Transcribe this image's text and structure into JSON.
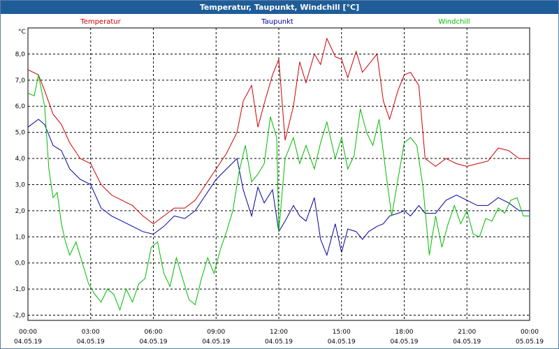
{
  "window": {
    "title": "Temperatur, Taupunkt, Windchill [°C]"
  },
  "chart_data": {
    "type": "line",
    "title": "Temperatur, Taupunkt, Windchill [°C]",
    "ylabel": "°C",
    "ylim": [
      -2.2,
      9.0
    ],
    "grid": true,
    "legend_position": "top",
    "x_hour_range": [
      0,
      24
    ],
    "x_ticks": [
      {
        "h": 0,
        "time": "00:00",
        "date": "04.05.19"
      },
      {
        "h": 3,
        "time": "03:00",
        "date": "04.05.19"
      },
      {
        "h": 6,
        "time": "06:00",
        "date": "04.05.19"
      },
      {
        "h": 9,
        "time": "09:00",
        "date": "04.05.19"
      },
      {
        "h": 12,
        "time": "12:00",
        "date": "04.05.19"
      },
      {
        "h": 15,
        "time": "15:00",
        "date": "04.05.19"
      },
      {
        "h": 18,
        "time": "18:00",
        "date": "04.05.19"
      },
      {
        "h": 21,
        "time": "21:00",
        "date": "04.05.19"
      },
      {
        "h": 24,
        "time": "00:00",
        "date": "05.05.19"
      }
    ],
    "y_ticks": [
      {
        "v": 8.0,
        "label": "8,0"
      },
      {
        "v": 7.0,
        "label": "7,0"
      },
      {
        "v": 6.0,
        "label": "6,0"
      },
      {
        "v": 5.0,
        "label": "5,0"
      },
      {
        "v": 4.0,
        "label": "4,0"
      },
      {
        "v": 3.0,
        "label": "3,0"
      },
      {
        "v": 2.0,
        "label": "2,0"
      },
      {
        "v": 1.0,
        "label": "1,0"
      },
      {
        "v": 0.0,
        "label": "0,0"
      },
      {
        "v": -1.0,
        "label": "-1,0"
      },
      {
        "v": -2.0,
        "label": "-2,0"
      }
    ],
    "series": [
      {
        "name": "Temperatur",
        "color": "#cc0000",
        "x": [
          0,
          0.5,
          0.8,
          1.2,
          1.6,
          2.0,
          2.5,
          3.0,
          3.5,
          4.0,
          4.5,
          5.0,
          5.5,
          6.0,
          6.5,
          7.0,
          7.5,
          8.0,
          8.5,
          9.0,
          9.5,
          10.0,
          10.3,
          10.7,
          11.0,
          11.3,
          11.7,
          12.0,
          12.3,
          12.7,
          13.0,
          13.3,
          13.7,
          14.0,
          14.3,
          14.7,
          15.0,
          15.3,
          15.7,
          16.0,
          16.3,
          16.7,
          17.0,
          17.3,
          17.7,
          18.0,
          18.3,
          18.7,
          19.0,
          19.5,
          20.0,
          20.5,
          21.0,
          21.5,
          22.0,
          22.5,
          23.0,
          23.5,
          24.0
        ],
        "y": [
          7.4,
          7.2,
          6.6,
          5.7,
          5.3,
          4.6,
          4.0,
          3.8,
          3.0,
          2.6,
          2.4,
          2.2,
          1.8,
          1.5,
          1.8,
          2.1,
          2.1,
          2.4,
          3.0,
          3.6,
          4.2,
          5.0,
          6.2,
          6.8,
          5.2,
          6.1,
          7.2,
          7.8,
          4.7,
          6.0,
          7.7,
          6.9,
          8.0,
          7.6,
          8.6,
          7.9,
          7.8,
          7.1,
          8.1,
          7.3,
          7.6,
          8.0,
          6.2,
          5.5,
          6.6,
          7.2,
          7.3,
          6.8,
          4.0,
          3.7,
          4.0,
          3.8,
          3.7,
          3.8,
          3.9,
          4.4,
          4.3,
          4.0,
          4.0
        ]
      },
      {
        "name": "Taupunkt",
        "color": "#00009c",
        "x": [
          0,
          0.5,
          0.8,
          1.2,
          1.6,
          2.0,
          2.5,
          3.0,
          3.5,
          4.0,
          4.5,
          5.0,
          5.5,
          6.0,
          6.5,
          7.0,
          7.5,
          8.0,
          8.5,
          9.0,
          9.5,
          10.0,
          10.3,
          10.7,
          11.0,
          11.3,
          11.7,
          12.0,
          12.3,
          12.7,
          13.0,
          13.3,
          13.7,
          14.0,
          14.3,
          14.7,
          15.0,
          15.3,
          15.7,
          16.0,
          16.3,
          16.7,
          17.0,
          17.3,
          17.7,
          18.0,
          18.3,
          18.7,
          19.0,
          19.5,
          20.0,
          20.5,
          21.0,
          21.5,
          22.0,
          22.5,
          23.0,
          23.5,
          24.0
        ],
        "y": [
          5.2,
          5.5,
          5.3,
          4.5,
          4.3,
          3.6,
          3.2,
          3.0,
          2.1,
          1.8,
          1.6,
          1.4,
          1.2,
          1.1,
          1.4,
          1.8,
          1.7,
          2.0,
          2.6,
          3.2,
          3.6,
          4.0,
          2.8,
          1.8,
          2.9,
          2.3,
          2.8,
          1.2,
          1.6,
          2.2,
          1.8,
          1.6,
          2.5,
          0.9,
          0.3,
          1.5,
          0.4,
          1.3,
          1.2,
          0.9,
          1.2,
          1.4,
          1.5,
          1.8,
          1.9,
          2.0,
          1.8,
          2.2,
          1.9,
          1.9,
          2.4,
          2.6,
          2.4,
          2.2,
          2.2,
          2.5,
          2.3,
          2.0,
          2.0
        ]
      },
      {
        "name": "Windchill",
        "color": "#00bb00",
        "x": [
          0,
          0.3,
          0.5,
          0.8,
          1.0,
          1.2,
          1.4,
          1.6,
          1.8,
          2.0,
          2.3,
          2.6,
          2.9,
          3.2,
          3.5,
          3.8,
          4.1,
          4.4,
          4.7,
          5.0,
          5.3,
          5.6,
          5.9,
          6.2,
          6.5,
          6.8,
          7.1,
          7.4,
          7.7,
          8.0,
          8.3,
          8.6,
          8.9,
          9.2,
          9.5,
          9.8,
          10.1,
          10.4,
          10.7,
          11.0,
          11.3,
          11.6,
          11.9,
          12.0,
          12.3,
          12.7,
          13.0,
          13.3,
          13.7,
          14.0,
          14.3,
          14.7,
          15.0,
          15.3,
          15.6,
          15.9,
          16.2,
          16.5,
          16.8,
          17.1,
          17.4,
          17.7,
          18.0,
          18.3,
          18.6,
          18.9,
          19.2,
          19.5,
          19.8,
          20.1,
          20.4,
          20.7,
          21.0,
          21.3,
          21.6,
          21.9,
          22.2,
          22.5,
          22.8,
          23.1,
          23.4,
          23.7,
          24.0
        ],
        "y": [
          6.5,
          6.4,
          7.2,
          6.0,
          3.6,
          2.5,
          2.7,
          1.5,
          0.8,
          0.3,
          0.8,
          0.0,
          -0.8,
          -1.2,
          -1.5,
          -1.0,
          -1.2,
          -1.8,
          -1.0,
          -1.5,
          -0.8,
          -0.6,
          0.6,
          0.8,
          -0.4,
          -0.9,
          0.2,
          -0.6,
          -1.4,
          -1.6,
          -0.6,
          0.2,
          -0.4,
          0.5,
          1.2,
          2.0,
          3.5,
          4.5,
          3.1,
          3.4,
          3.8,
          5.6,
          4.8,
          1.2,
          4.0,
          4.8,
          3.8,
          4.5,
          3.6,
          4.6,
          5.4,
          4.0,
          4.8,
          3.6,
          4.1,
          5.9,
          5.0,
          4.5,
          5.5,
          3.6,
          1.8,
          3.2,
          4.6,
          4.8,
          4.5,
          2.9,
          0.3,
          1.8,
          0.6,
          1.5,
          2.2,
          1.5,
          2.0,
          1.1,
          1.0,
          1.7,
          1.6,
          2.1,
          1.9,
          2.4,
          2.5,
          1.8,
          1.8
        ]
      }
    ]
  }
}
